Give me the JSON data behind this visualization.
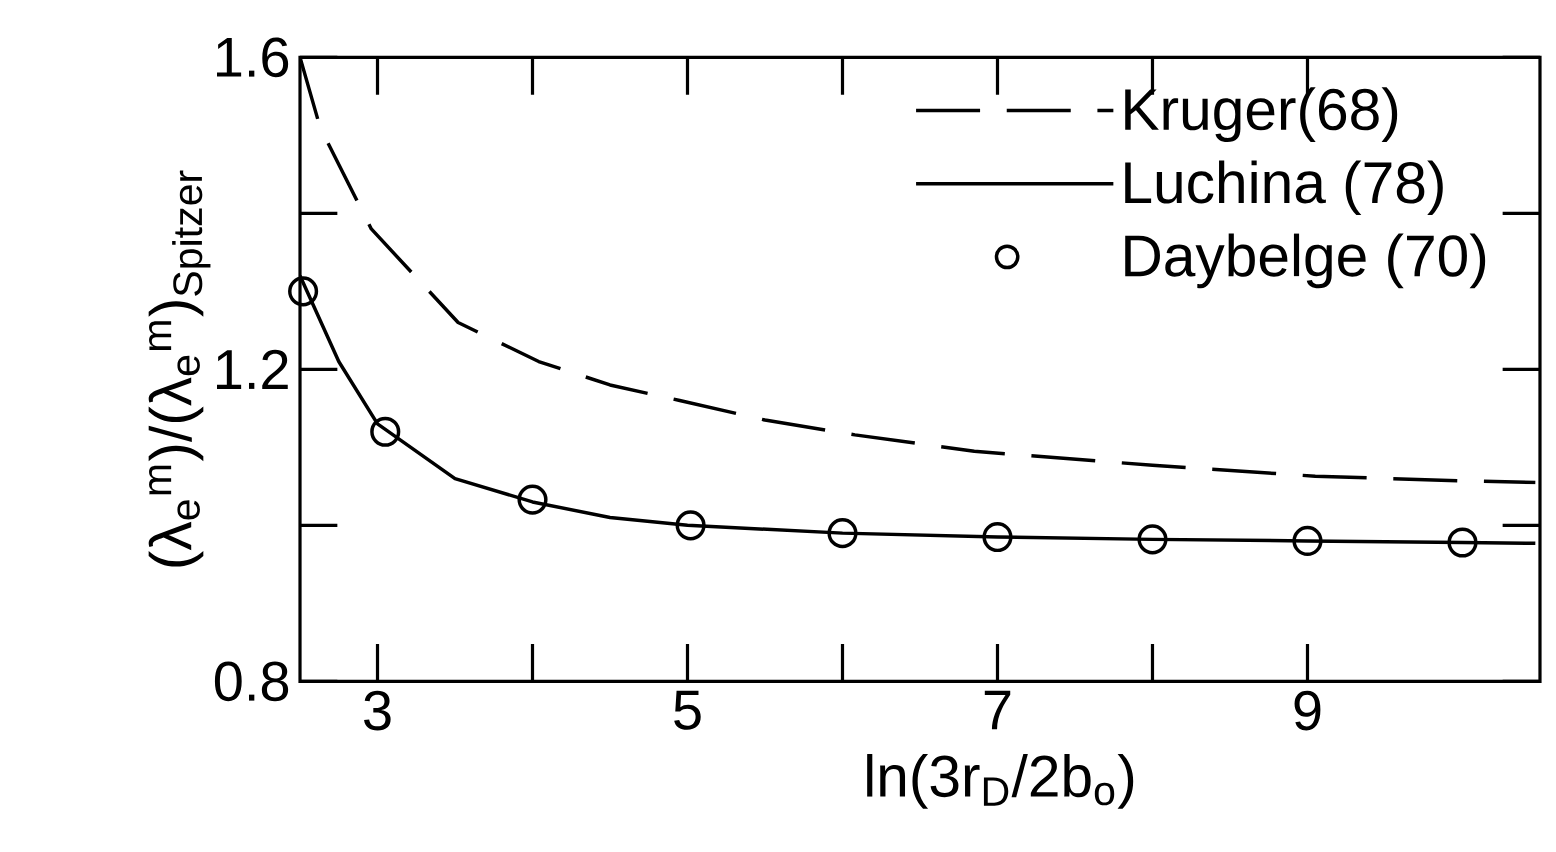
{
  "chart_data": {
    "type": "line",
    "xlabel": "ln(3r$_{D}$/2b$_{o}$)",
    "ylabel": "(λ$_{e}$$^{m}$)/(λ$_{e}$$^{m}$)$_{Spitzer}$",
    "xlim": [
      2.5,
      10.5
    ],
    "ylim": [
      0.8,
      1.6
    ],
    "xticks": [
      3,
      5,
      7,
      9
    ],
    "yticks": [
      0.8,
      1.2,
      1.6
    ],
    "legend": "top right",
    "series": [
      {
        "name": "Kruger(68)",
        "type": "line",
        "line_style": "dashed",
        "color": "#000000",
        "x": [
          2.5,
          2.63,
          2.96,
          3.52,
          4.04,
          4.5,
          4.95,
          5.5,
          6.08,
          6.85,
          8,
          9.05,
          10,
          10.47
        ],
        "values": [
          1.6,
          1.51,
          1.38,
          1.26,
          1.21,
          1.18,
          1.16,
          1.135,
          1.116,
          1.095,
          1.077,
          1.063,
          1.057,
          1.055
        ]
      },
      {
        "name": "Luchina (78)",
        "type": "line",
        "line_style": "solid",
        "color": "#000000",
        "x": [
          2.5,
          2.75,
          3,
          3.5,
          4,
          4.5,
          5,
          6,
          7,
          8,
          9,
          10,
          10.47
        ],
        "values": [
          1.32,
          1.21,
          1.13,
          1.06,
          1.03,
          1.01,
          1.0,
          0.99,
          0.985,
          0.982,
          0.98,
          0.978,
          0.977
        ]
      },
      {
        "name": "Daybelge (70)",
        "type": "scatter",
        "marker": "circle",
        "color": "#000000",
        "x": [
          2.52,
          3.05,
          4.0,
          5.02,
          6,
          7,
          8,
          9,
          10
        ],
        "values": [
          1.3,
          1.12,
          1.033,
          1.0,
          0.99,
          0.985,
          0.982,
          0.98,
          0.978
        ]
      }
    ]
  }
}
